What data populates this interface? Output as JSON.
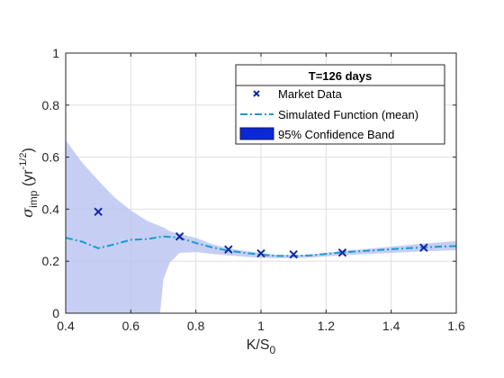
{
  "chart_data": {
    "type": "line",
    "title": "",
    "xlabel": "K/S",
    "xlabel_sub": "0",
    "ylabel_main": "σ",
    "ylabel_sub": "imp",
    "ylabel_unit_open": " (yr",
    "ylabel_unit_sup": "-1/2",
    "ylabel_unit_close": ")",
    "xlim": [
      0.4,
      1.6
    ],
    "ylim": [
      0,
      1
    ],
    "xticks": [
      0.4,
      0.6,
      0.8,
      1,
      1.2,
      1.4,
      1.6
    ],
    "xtick_labels": [
      "0.4",
      "0.6",
      "0.8",
      "1",
      "1.2",
      "1.4",
      "1.6"
    ],
    "yticks": [
      0,
      0.2,
      0.4,
      0.6,
      0.8,
      1
    ],
    "ytick_labels": [
      "0",
      "0.2",
      "0.4",
      "0.6",
      "0.8",
      "1"
    ],
    "grid": true,
    "legend": {
      "placement": "top-right",
      "title": "T=126 days",
      "entries": [
        "Market Data",
        "Simulated Function (mean)",
        "95% Confidence Band"
      ]
    },
    "series": [
      {
        "name": "Market Data",
        "type": "scatter",
        "marker": "x",
        "color": "#1028a0",
        "x": [
          0.5,
          0.75,
          0.9,
          1.0,
          1.1,
          1.25,
          1.5
        ],
        "y": [
          0.39,
          0.295,
          0.245,
          0.23,
          0.226,
          0.233,
          0.252
        ]
      },
      {
        "name": "Simulated Function (mean)",
        "type": "line",
        "style": "dash-dot",
        "color": "#1a9ad6",
        "x": [
          0.4,
          0.45,
          0.5,
          0.55,
          0.6,
          0.65,
          0.7,
          0.75,
          0.8,
          0.85,
          0.9,
          0.95,
          1.0,
          1.05,
          1.1,
          1.15,
          1.2,
          1.25,
          1.3,
          1.35,
          1.4,
          1.45,
          1.5,
          1.55,
          1.6
        ],
        "y": [
          0.29,
          0.275,
          0.25,
          0.265,
          0.282,
          0.285,
          0.295,
          0.29,
          0.27,
          0.253,
          0.24,
          0.232,
          0.225,
          0.22,
          0.22,
          0.222,
          0.228,
          0.234,
          0.238,
          0.242,
          0.246,
          0.25,
          0.253,
          0.256,
          0.258
        ]
      },
      {
        "name": "95% Confidence Band",
        "type": "area",
        "color": "#b8c3f0",
        "x": [
          0.4,
          0.45,
          0.5,
          0.55,
          0.6,
          0.65,
          0.69,
          0.7,
          0.72,
          0.75,
          0.8,
          0.85,
          0.9,
          0.95,
          1.0,
          1.05,
          1.1,
          1.15,
          1.2,
          1.25,
          1.3,
          1.35,
          1.4,
          1.45,
          1.5,
          1.55,
          1.6
        ],
        "upper": [
          0.665,
          0.58,
          0.51,
          0.445,
          0.395,
          0.355,
          0.335,
          0.33,
          0.315,
          0.305,
          0.29,
          0.265,
          0.25,
          0.24,
          0.232,
          0.225,
          0.224,
          0.226,
          0.232,
          0.24,
          0.245,
          0.25,
          0.256,
          0.262,
          0.268,
          0.272,
          0.278
        ],
        "lower": [
          0,
          0,
          0,
          0,
          0,
          0,
          0,
          0.13,
          0.195,
          0.232,
          0.235,
          0.228,
          0.222,
          0.217,
          0.213,
          0.212,
          0.212,
          0.214,
          0.218,
          0.222,
          0.226,
          0.229,
          0.232,
          0.235,
          0.238,
          0.24,
          0.242
        ]
      }
    ]
  }
}
